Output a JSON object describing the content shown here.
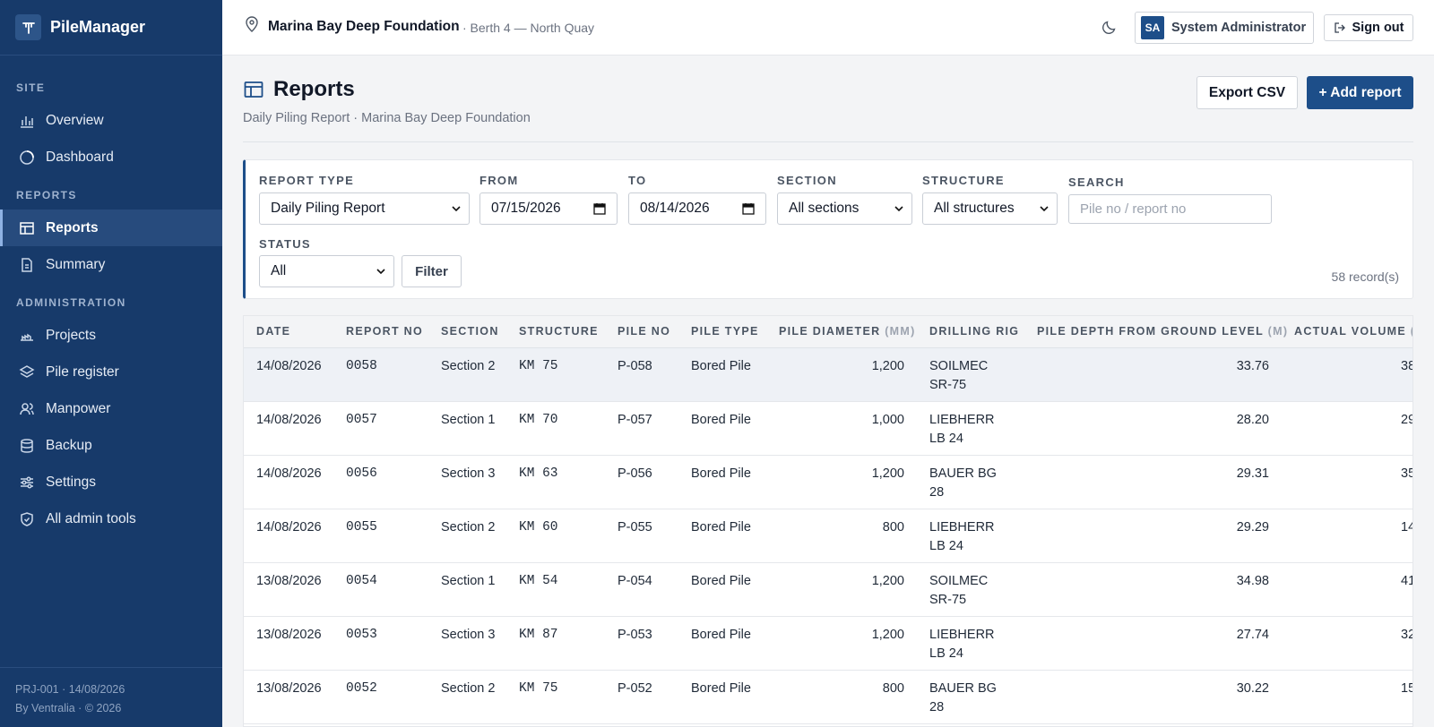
{
  "app": {
    "name": "PileManager"
  },
  "sidebar": {
    "sections": [
      {
        "title": "SITE",
        "items": [
          {
            "label": "Overview",
            "icon": "bar-chart-icon"
          },
          {
            "label": "Dashboard",
            "icon": "dashboard-icon"
          }
        ]
      },
      {
        "title": "REPORTS",
        "items": [
          {
            "label": "Reports",
            "icon": "table-icon",
            "active": true
          },
          {
            "label": "Summary",
            "icon": "document-icon"
          }
        ]
      },
      {
        "title": "ADMINISTRATION",
        "items": [
          {
            "label": "Projects",
            "icon": "projects-icon"
          },
          {
            "label": "Pile register",
            "icon": "layers-icon"
          },
          {
            "label": "Manpower",
            "icon": "users-icon"
          },
          {
            "label": "Backup",
            "icon": "database-icon"
          },
          {
            "label": "Settings",
            "icon": "sliders-icon"
          },
          {
            "label": "All admin tools",
            "icon": "shield-icon"
          }
        ]
      }
    ],
    "footer_line1": "PRJ-001 · 14/08/2026",
    "footer_line2": "By Ventralia · © 2026"
  },
  "topbar": {
    "project": "Marina Bay Deep Foundation",
    "location": "· Berth 4 — North Quay",
    "avatar_initials": "SA",
    "user_name": "System Administrator",
    "signout_label": "Sign out"
  },
  "page": {
    "title": "Reports",
    "subtitle": "Daily Piling Report · Marina Bay Deep Foundation",
    "export_label": "Export CSV",
    "add_label": "+ Add report"
  },
  "filters": {
    "report_type": {
      "label": "REPORT TYPE",
      "value": "Daily Piling Report"
    },
    "from": {
      "label": "FROM",
      "value": "07/15/2026"
    },
    "to": {
      "label": "TO",
      "value": "08/14/2026"
    },
    "section": {
      "label": "SECTION",
      "value": "All sections"
    },
    "structure": {
      "label": "STRUCTURE",
      "value": "All structures"
    },
    "search": {
      "label": "SEARCH",
      "placeholder": "Pile no / report no"
    },
    "status": {
      "label": "STATUS",
      "value": "All"
    },
    "filter_label": "Filter",
    "records": "58 record(s)"
  },
  "table": {
    "headers": [
      {
        "text": "DATE",
        "unit": ""
      },
      {
        "text": "REPORT NO",
        "unit": ""
      },
      {
        "text": "SECTION",
        "unit": ""
      },
      {
        "text": "STRUCTURE",
        "unit": ""
      },
      {
        "text": "PILE NO",
        "unit": ""
      },
      {
        "text": "PILE TYPE",
        "unit": ""
      },
      {
        "text": "PILE DIAMETER",
        "unit": "(MM)"
      },
      {
        "text": "DRILLING RIG",
        "unit": ""
      },
      {
        "text": "PILE DEPTH FROM GROUND LEVEL",
        "unit": "(M)"
      },
      {
        "text": "ACTUAL VOLUME",
        "unit": "("
      }
    ],
    "rows": [
      {
        "date": "14/08/2026",
        "report_no": "0058",
        "section": "Section 2",
        "structure": "KM 75",
        "pile_no": "P-058",
        "pile_type": "Bored Pile",
        "diameter": "1,200",
        "rig_l1": "SOILMEC",
        "rig_l2": "SR-75",
        "depth": "33.76",
        "volume": "38"
      },
      {
        "date": "14/08/2026",
        "report_no": "0057",
        "section": "Section 1",
        "structure": "KM 70",
        "pile_no": "P-057",
        "pile_type": "Bored Pile",
        "diameter": "1,000",
        "rig_l1": "LIEBHERR",
        "rig_l2": "LB 24",
        "depth": "28.20",
        "volume": "29"
      },
      {
        "date": "14/08/2026",
        "report_no": "0056",
        "section": "Section 3",
        "structure": "KM 63",
        "pile_no": "P-056",
        "pile_type": "Bored Pile",
        "diameter": "1,200",
        "rig_l1": "BAUER BG",
        "rig_l2": "28",
        "depth": "29.31",
        "volume": "35"
      },
      {
        "date": "14/08/2026",
        "report_no": "0055",
        "section": "Section 2",
        "structure": "KM 60",
        "pile_no": "P-055",
        "pile_type": "Bored Pile",
        "diameter": "800",
        "rig_l1": "LIEBHERR",
        "rig_l2": "LB 24",
        "depth": "29.29",
        "volume": "14"
      },
      {
        "date": "13/08/2026",
        "report_no": "0054",
        "section": "Section 1",
        "structure": "KM 54",
        "pile_no": "P-054",
        "pile_type": "Bored Pile",
        "diameter": "1,200",
        "rig_l1": "SOILMEC",
        "rig_l2": "SR-75",
        "depth": "34.98",
        "volume": "41"
      },
      {
        "date": "13/08/2026",
        "report_no": "0053",
        "section": "Section 3",
        "structure": "KM 87",
        "pile_no": "P-053",
        "pile_type": "Bored Pile",
        "diameter": "1,200",
        "rig_l1": "LIEBHERR",
        "rig_l2": "LB 24",
        "depth": "27.74",
        "volume": "32"
      },
      {
        "date": "13/08/2026",
        "report_no": "0052",
        "section": "Section 2",
        "structure": "KM 75",
        "pile_no": "P-052",
        "pile_type": "Bored Pile",
        "diameter": "800",
        "rig_l1": "BAUER BG",
        "rig_l2": "28",
        "depth": "30.22",
        "volume": "15"
      }
    ]
  }
}
